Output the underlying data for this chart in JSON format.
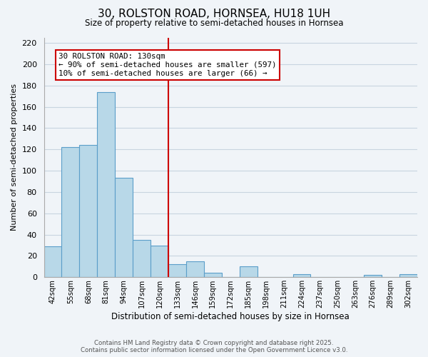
{
  "title": "30, ROLSTON ROAD, HORNSEA, HU18 1UH",
  "subtitle": "Size of property relative to semi-detached houses in Hornsea",
  "xlabel": "Distribution of semi-detached houses by size in Hornsea",
  "ylabel": "Number of semi-detached properties",
  "bar_labels": [
    "42sqm",
    "55sqm",
    "68sqm",
    "81sqm",
    "94sqm",
    "107sqm",
    "120sqm",
    "133sqm",
    "146sqm",
    "159sqm",
    "172sqm",
    "185sqm",
    "198sqm",
    "211sqm",
    "224sqm",
    "237sqm",
    "250sqm",
    "263sqm",
    "276sqm",
    "289sqm",
    "302sqm"
  ],
  "bar_values": [
    29,
    122,
    124,
    174,
    93,
    35,
    30,
    12,
    15,
    4,
    0,
    10,
    0,
    0,
    3,
    0,
    0,
    0,
    2,
    0,
    3
  ],
  "bar_color": "#b8d8e8",
  "bar_edgecolor": "#5b9ec9",
  "vline_color": "#cc0000",
  "annotation_text": "30 ROLSTON ROAD: 130sqm\n← 90% of semi-detached houses are smaller (597)\n10% of semi-detached houses are larger (66) →",
  "ylim": [
    0,
    225
  ],
  "yticks": [
    0,
    20,
    40,
    60,
    80,
    100,
    120,
    140,
    160,
    180,
    200,
    220
  ],
  "background_color": "#f0f4f8",
  "grid_color": "#c8d4e0",
  "footer_line1": "Contains HM Land Registry data © Crown copyright and database right 2025.",
  "footer_line2": "Contains public sector information licensed under the Open Government Licence v3.0."
}
